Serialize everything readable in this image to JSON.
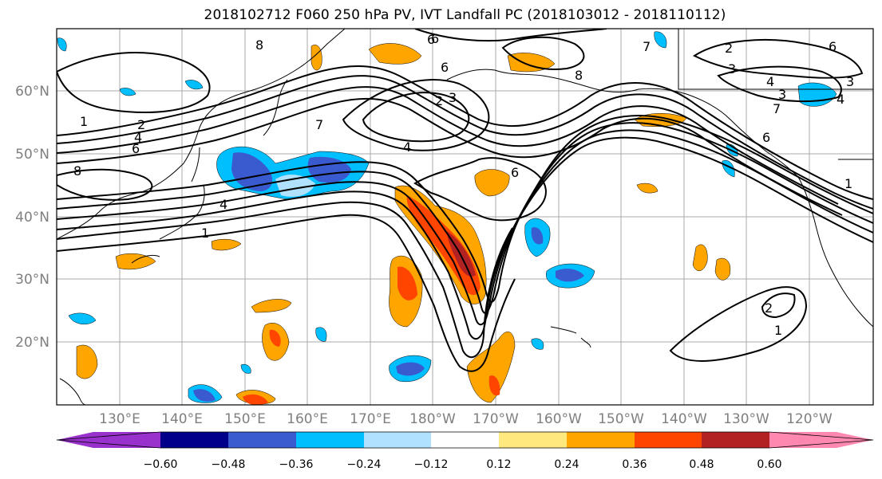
{
  "title": "2018102712 F060 250 hPa PV, IVT Landfall PC (2018103012 - 2018110112)",
  "lat_labels": [
    "60°N",
    "50°N",
    "40°N",
    "30°N",
    "20°N"
  ],
  "lon_labels": [
    "130°E",
    "140°E",
    "150°E",
    "160°E",
    "170°E",
    "180°W",
    "170°W",
    "160°W",
    "150°W",
    "140°W",
    "130°W",
    "120°W"
  ],
  "colorbar": {
    "ticks": [
      "−0.60",
      "−0.48",
      "−0.36",
      "−0.24",
      "−0.12",
      "0.12",
      "0.24",
      "0.36",
      "0.48",
      "0.60"
    ],
    "colors": [
      "#9932cc",
      "#00008b",
      "#3a5bd0",
      "#00bfff",
      "#b0e2ff",
      "#ffffff",
      "#ffe97f",
      "#ffa500",
      "#ff4500",
      "#b22222",
      "#ff88b0"
    ]
  },
  "contour_labels": [
    "1",
    "2",
    "3",
    "4",
    "6",
    "7",
    "8"
  ],
  "colors": {
    "land": "#ffffff",
    "grid": "#a9a9a9",
    "contour": "#000000"
  }
}
